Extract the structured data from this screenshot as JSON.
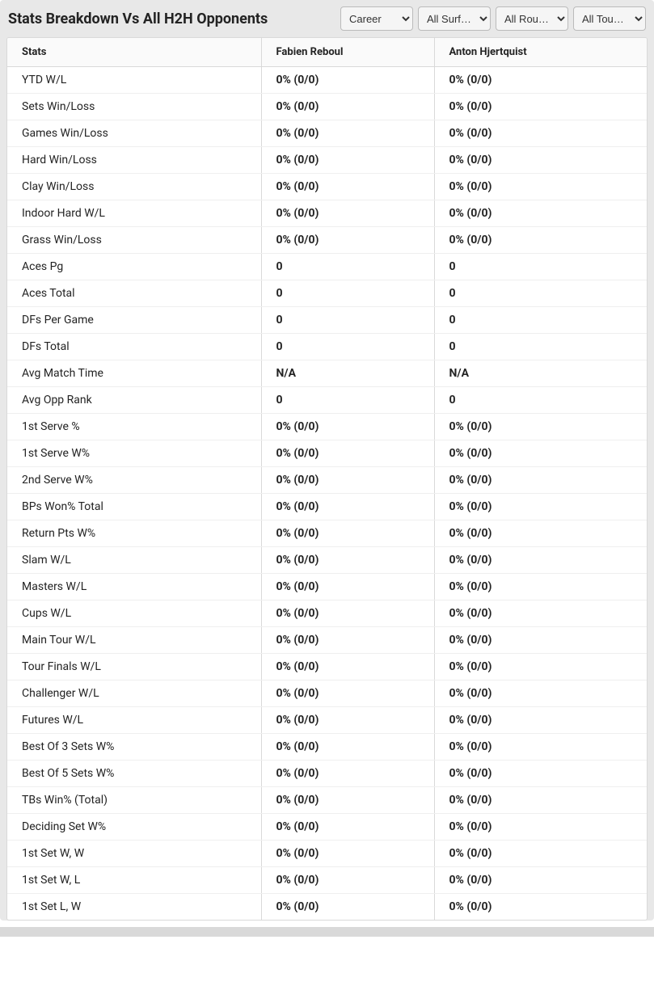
{
  "header": {
    "title": "Stats Breakdown Vs All H2H Opponents",
    "filters": [
      {
        "label": "Career"
      },
      {
        "label": "All Surf…"
      },
      {
        "label": "All Rou…"
      },
      {
        "label": "All Tour…"
      }
    ]
  },
  "table": {
    "columns": [
      "Stats",
      "Fabien Reboul",
      "Anton Hjertquist"
    ],
    "rows": [
      {
        "label": "YTD W/L",
        "p1": "0% (0/0)",
        "p2": "0% (0/0)"
      },
      {
        "label": "Sets Win/Loss",
        "p1": "0% (0/0)",
        "p2": "0% (0/0)"
      },
      {
        "label": "Games Win/Loss",
        "p1": "0% (0/0)",
        "p2": "0% (0/0)"
      },
      {
        "label": "Hard Win/Loss",
        "p1": "0% (0/0)",
        "p2": "0% (0/0)"
      },
      {
        "label": "Clay Win/Loss",
        "p1": "0% (0/0)",
        "p2": "0% (0/0)"
      },
      {
        "label": "Indoor Hard W/L",
        "p1": "0% (0/0)",
        "p2": "0% (0/0)"
      },
      {
        "label": "Grass Win/Loss",
        "p1": "0% (0/0)",
        "p2": "0% (0/0)"
      },
      {
        "label": "Aces Pg",
        "p1": "0",
        "p2": "0"
      },
      {
        "label": "Aces Total",
        "p1": "0",
        "p2": "0"
      },
      {
        "label": "DFs Per Game",
        "p1": "0",
        "p2": "0"
      },
      {
        "label": "DFs Total",
        "p1": "0",
        "p2": "0"
      },
      {
        "label": "Avg Match Time",
        "p1": "N/A",
        "p2": "N/A"
      },
      {
        "label": "Avg Opp Rank",
        "p1": "0",
        "p2": "0"
      },
      {
        "label": "1st Serve %",
        "p1": "0% (0/0)",
        "p2": "0% (0/0)"
      },
      {
        "label": "1st Serve W%",
        "p1": "0% (0/0)",
        "p2": "0% (0/0)"
      },
      {
        "label": "2nd Serve W%",
        "p1": "0% (0/0)",
        "p2": "0% (0/0)"
      },
      {
        "label": "BPs Won% Total",
        "p1": "0% (0/0)",
        "p2": "0% (0/0)"
      },
      {
        "label": "Return Pts W%",
        "p1": "0% (0/0)",
        "p2": "0% (0/0)"
      },
      {
        "label": "Slam W/L",
        "p1": "0% (0/0)",
        "p2": "0% (0/0)"
      },
      {
        "label": "Masters W/L",
        "p1": "0% (0/0)",
        "p2": "0% (0/0)"
      },
      {
        "label": "Cups W/L",
        "p1": "0% (0/0)",
        "p2": "0% (0/0)"
      },
      {
        "label": "Main Tour W/L",
        "p1": "0% (0/0)",
        "p2": "0% (0/0)"
      },
      {
        "label": "Tour Finals W/L",
        "p1": "0% (0/0)",
        "p2": "0% (0/0)"
      },
      {
        "label": "Challenger W/L",
        "p1": "0% (0/0)",
        "p2": "0% (0/0)"
      },
      {
        "label": "Futures W/L",
        "p1": "0% (0/0)",
        "p2": "0% (0/0)"
      },
      {
        "label": "Best Of 3 Sets W%",
        "p1": "0% (0/0)",
        "p2": "0% (0/0)"
      },
      {
        "label": "Best Of 5 Sets W%",
        "p1": "0% (0/0)",
        "p2": "0% (0/0)"
      },
      {
        "label": "TBs Win% (Total)",
        "p1": "0% (0/0)",
        "p2": "0% (0/0)"
      },
      {
        "label": "Deciding Set W%",
        "p1": "0% (0/0)",
        "p2": "0% (0/0)"
      },
      {
        "label": "1st Set W, W",
        "p1": "0% (0/0)",
        "p2": "0% (0/0)"
      },
      {
        "label": "1st Set W, L",
        "p1": "0% (0/0)",
        "p2": "0% (0/0)"
      },
      {
        "label": "1st Set L, W",
        "p1": "0% (0/0)",
        "p2": "0% (0/0)"
      }
    ]
  },
  "styles": {
    "background": "#e8e8e8",
    "table_bg": "#ffffff",
    "border_color": "#d9d9d9",
    "row_border_color": "#efefef",
    "text_color": "#232323",
    "header_bg": "#fafafa",
    "title_fontsize": 18,
    "header_fontsize": 13,
    "cell_fontsize": 14
  }
}
